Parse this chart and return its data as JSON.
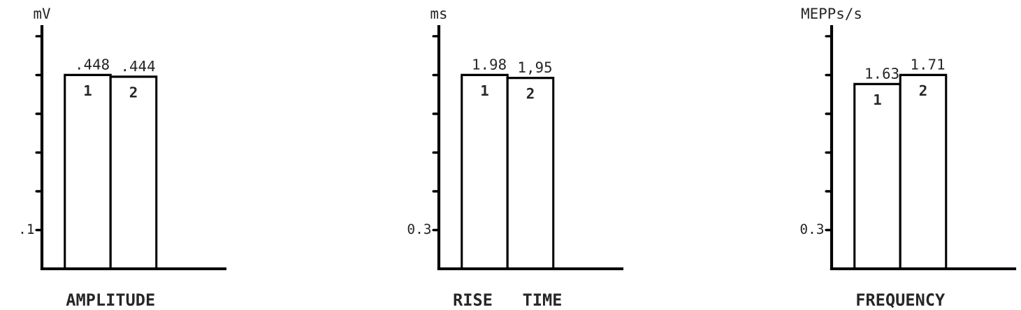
{
  "chart_data": [
    {
      "type": "bar",
      "xlabel": "AMPLITUDE",
      "ylabel": "mV",
      "categories": [
        "1",
        "2"
      ],
      "values": [
        0.448,
        0.444
      ],
      "value_labels": [
        ".448",
        ".444"
      ],
      "color": "#ffffff",
      "annotations": [
        ".1"
      ]
    },
    {
      "type": "bar",
      "xlabel": "RISE   TIME",
      "ylabel": "ms",
      "categories": [
        "1",
        "2"
      ],
      "values": [
        1.98,
        1.95
      ],
      "value_labels": [
        "1.98",
        "1,95"
      ],
      "color": "#ffffff",
      "annotations": [
        "0.3"
      ]
    },
    {
      "type": "bar",
      "xlabel": "FREQUENCY",
      "ylabel": "MEPPs/s",
      "categories": [
        "1",
        "2"
      ],
      "values": [
        1.63,
        1.71
      ],
      "value_labels": [
        "1.63",
        "1.71"
      ],
      "color": "#ffffff",
      "annotations": [
        "0.3"
      ]
    }
  ]
}
